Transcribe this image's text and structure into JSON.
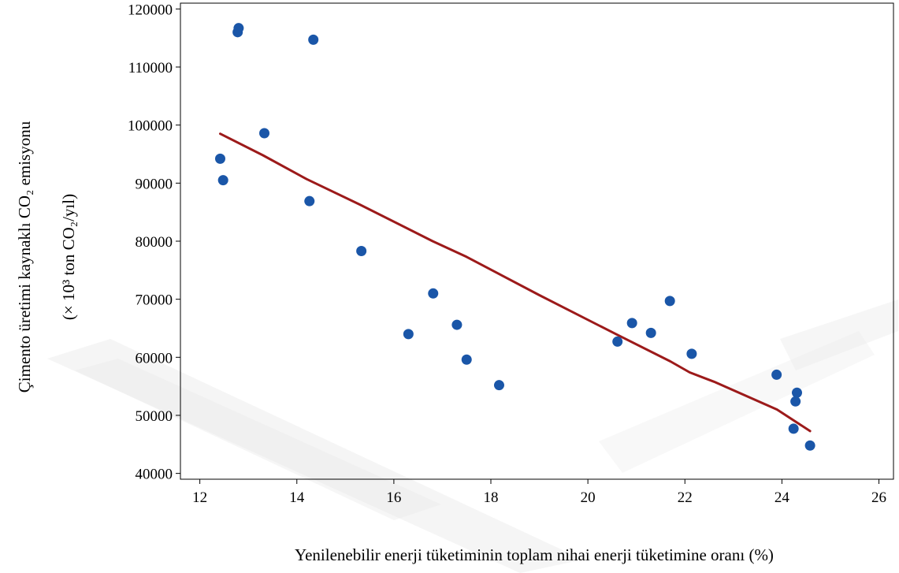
{
  "chart_data": {
    "type": "scatter",
    "xlabel": "Yenilenebilir enerji tüketiminin toplam nihai enerji tüketimine oranı (%)",
    "ylabel_line1": "Çimento üretimi kaynaklı CO₂ emisyonu",
    "ylabel_line2": "(× 10³ ton CO₂/yıl)",
    "xlim": [
      11.6,
      26.3
    ],
    "ylim": [
      39000,
      121000
    ],
    "xticks": [
      "12",
      "14",
      "16",
      "18",
      "20",
      "22",
      "24",
      "26"
    ],
    "yticks": [
      "40000",
      "50000",
      "60000",
      "70000",
      "80000",
      "90000",
      "100000",
      "110000",
      "120000"
    ],
    "grid": false,
    "points": [
      {
        "x": 12.42,
        "y": 94200
      },
      {
        "x": 12.48,
        "y": 90500
      },
      {
        "x": 12.78,
        "y": 116000
      },
      {
        "x": 12.8,
        "y": 116700
      },
      {
        "x": 13.33,
        "y": 98600
      },
      {
        "x": 14.26,
        "y": 86900
      },
      {
        "x": 14.34,
        "y": 114700
      },
      {
        "x": 15.33,
        "y": 78300
      },
      {
        "x": 16.3,
        "y": 64000
      },
      {
        "x": 16.81,
        "y": 71000
      },
      {
        "x": 17.3,
        "y": 65600
      },
      {
        "x": 17.5,
        "y": 59600
      },
      {
        "x": 18.17,
        "y": 55200
      },
      {
        "x": 20.61,
        "y": 62700
      },
      {
        "x": 20.91,
        "y": 65900
      },
      {
        "x": 21.3,
        "y": 64200
      },
      {
        "x": 21.69,
        "y": 69700
      },
      {
        "x": 22.14,
        "y": 60600
      },
      {
        "x": 23.89,
        "y": 57000
      },
      {
        "x": 24.24,
        "y": 47700
      },
      {
        "x": 24.28,
        "y": 52400
      },
      {
        "x": 24.31,
        "y": 53900
      },
      {
        "x": 24.58,
        "y": 44800
      }
    ],
    "fit_line": [
      {
        "x": 12.42,
        "y": 98500
      },
      {
        "x": 13.3,
        "y": 94800
      },
      {
        "x": 14.2,
        "y": 90700
      },
      {
        "x": 15.3,
        "y": 86300
      },
      {
        "x": 16.8,
        "y": 80000
      },
      {
        "x": 17.5,
        "y": 77300
      },
      {
        "x": 19.0,
        "y": 70700
      },
      {
        "x": 20.6,
        "y": 63900
      },
      {
        "x": 21.7,
        "y": 59300
      },
      {
        "x": 22.1,
        "y": 57400
      },
      {
        "x": 22.6,
        "y": 55800
      },
      {
        "x": 23.9,
        "y": 51000
      },
      {
        "x": 24.58,
        "y": 47300
      }
    ],
    "colors": {
      "points": "#1a56a8",
      "fit_line": "#9c1a1a",
      "axis": "#000000"
    }
  }
}
